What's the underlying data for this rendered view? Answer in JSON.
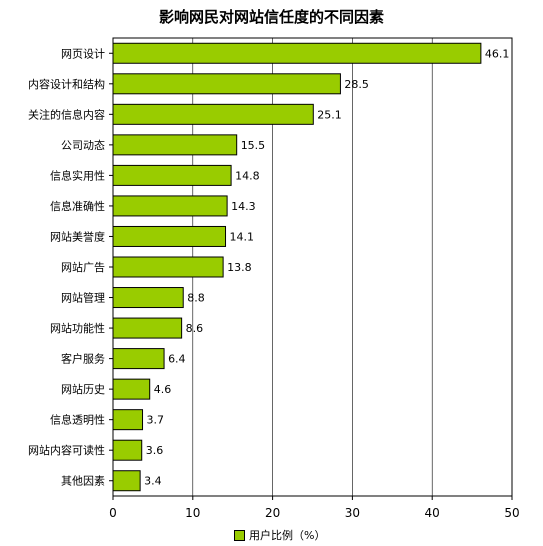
{
  "chart_data": {
    "type": "bar",
    "orientation": "horizontal",
    "title": "影响网民对网站信任度的不同因素",
    "categories": [
      "网页设计",
      "内容设计和结构",
      "关注的信息内容",
      "公司动态",
      "信息实用性",
      "信息准确性",
      "网站美誉度",
      "网站广告",
      "网站管理",
      "网站功能性",
      "客户服务",
      "网站历史",
      "信息透明性",
      "网站内容可读性",
      "其他因素"
    ],
    "series": [
      {
        "name": "用户比例（%）",
        "values": [
          46.1,
          28.5,
          25.1,
          15.5,
          14.8,
          14.3,
          14.1,
          13.8,
          8.8,
          8.6,
          6.4,
          4.6,
          3.7,
          3.6,
          3.4
        ],
        "value_labels": [
          "46.1",
          "28.5",
          "25.1",
          "15.5",
          "14.8",
          "14.3",
          "14.1",
          "13.8",
          "8.8",
          "8.6",
          "6.4",
          "4.6",
          "3.7",
          "3.6",
          "3.4"
        ]
      }
    ],
    "xlim": [
      0,
      50
    ],
    "xticks": [
      "0",
      "10",
      "20",
      "30",
      "40",
      "50"
    ],
    "grid": true,
    "legend_position": "bottom",
    "bar_color": "#99cc00"
  }
}
